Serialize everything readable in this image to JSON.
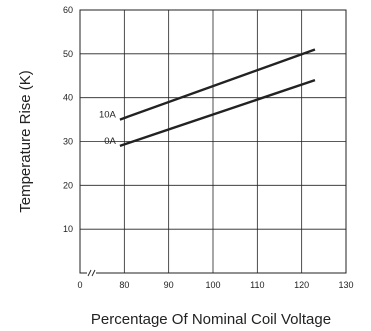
{
  "chart_data": {
    "type": "line",
    "xlabel": "Percentage Of Nominal Coil Voltage",
    "ylabel": "Temperature Rise (K)",
    "xlim": [
      70,
      130
    ],
    "ylim": [
      0,
      60
    ],
    "x_ticks": [
      "0",
      "80",
      "90",
      "100",
      "110",
      "120",
      "130"
    ],
    "y_ticks": [
      "10",
      "20",
      "30",
      "40",
      "50",
      "60"
    ],
    "axis_break": true,
    "grid": true,
    "legend": "none",
    "series": [
      {
        "name": "10A",
        "x": [
          79,
          123
        ],
        "y": [
          35,
          51
        ]
      },
      {
        "name": "0A",
        "x": [
          79,
          123
        ],
        "y": [
          29,
          44
        ]
      }
    ]
  },
  "colors": {
    "line": "#222222",
    "grid": "#222222"
  }
}
